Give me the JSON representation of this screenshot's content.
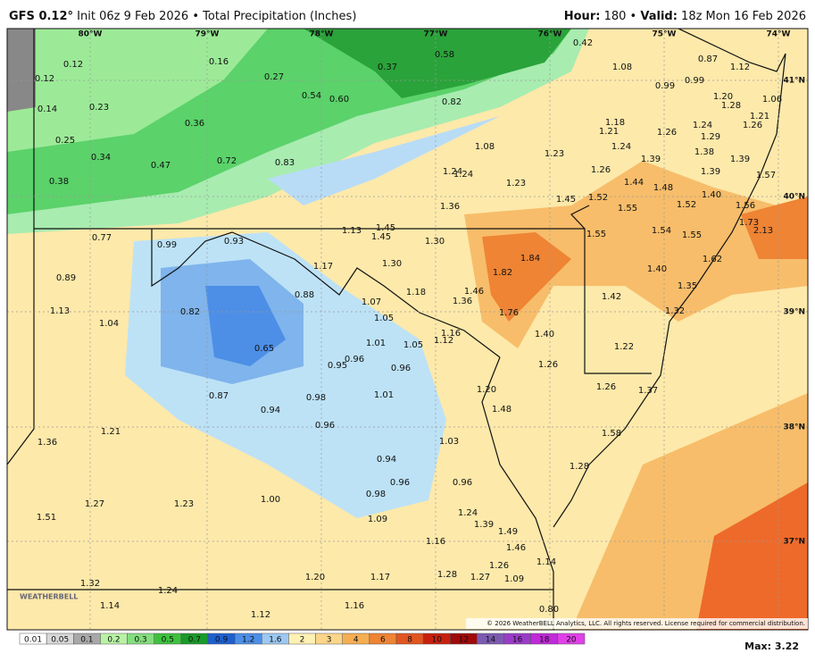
{
  "header": {
    "model": "GFS 0.12°",
    "title": "Init 06z 9 Feb 2026 • Total Precipitation (Inches)",
    "hour_label": "Hour:",
    "hour_value": "180",
    "separator": "•",
    "valid_label": "Valid:",
    "valid_value": "18z Mon 16 Feb 2026"
  },
  "map": {
    "longitudes": [
      "80°W",
      "79°W",
      "78°W",
      "77°W",
      "76°W",
      "75°W",
      "74°W"
    ],
    "latitudes": [
      "41°N",
      "40°N",
      "39°N",
      "38°N",
      "37°N"
    ],
    "values": [
      "0.12",
      "0.12",
      "0.16",
      "0.27",
      "0.37",
      "0.58",
      "0.42",
      "1.08",
      "0.87",
      "1.12",
      "0.14",
      "0.23",
      "0.54",
      "0.60",
      "0.82",
      "0.99",
      "0.99",
      "1.20",
      "1.28",
      "1.06",
      "0.36",
      "1.18",
      "1.21",
      "1.26",
      "1.24",
      "1.21",
      "1.26",
      "0.25",
      "0.34",
      "0.47",
      "0.72",
      "0.83",
      "1.08",
      "1.23",
      "1.24",
      "1.29",
      "1.38",
      "1.39",
      "1.39",
      "0.38",
      "1.24",
      "1.24",
      "1.23",
      "1.26",
      "1.44",
      "1.39",
      "1.57",
      "1.36",
      "1.45",
      "1.52",
      "1.48",
      "1.55",
      "1.52",
      "1.40",
      "1.56",
      "0.77",
      "0.99",
      "0.93",
      "1.13",
      "1.45",
      "1.45",
      "1.30",
      "1.55",
      "1.54",
      "1.55",
      "1.73",
      "2.13",
      "1.17",
      "1.30",
      "1.84",
      "1.82",
      "1.40",
      "1.62",
      "0.89",
      "0.88",
      "1.18",
      "1.46",
      "1.36",
      "1.42",
      "1.35",
      "1.13",
      "0.82",
      "1.07",
      "1.76",
      "1.32",
      "1.04",
      "1.05",
      "1.16",
      "1.40",
      "1.12",
      "0.65",
      "1.01",
      "1.05",
      "1.22",
      "0.96",
      "0.95",
      "0.96",
      "1.26",
      "0.87",
      "0.98",
      "1.01",
      "1.20",
      "1.26",
      "1.37",
      "0.94",
      "1.48",
      "1.36",
      "1.21",
      "0.96",
      "1.03",
      "1.58",
      "0.94",
      "1.28",
      "0.96",
      "0.96",
      "0.98",
      "1.51",
      "1.27",
      "1.23",
      "1.00",
      "1.09",
      "1.24",
      "1.39",
      "1.49",
      "1.16",
      "1.46",
      "1.28",
      "1.27",
      "1.26",
      "1.14",
      "1.09",
      "1.32",
      "1.20",
      "1.17",
      "1.24",
      "1.14",
      "1.16",
      "1.12",
      "0.80"
    ],
    "logo": "WEATHERBELL",
    "copyright": "© 2026 WeatherBELL Analytics, LLC. All rights reserved. License required for commercial distribution."
  },
  "legend": {
    "labels": [
      "0.01",
      "0.05",
      "0.1",
      "0.2",
      "0.3",
      "0.5",
      "0.7",
      "0.9",
      "1.2",
      "1.6",
      "2",
      "3",
      "4",
      "6",
      "8",
      "10",
      "12",
      "14",
      "16",
      "18",
      "20"
    ],
    "colors": [
      "#ffffff",
      "#d8d8d8",
      "#a8a8a8",
      "#b9f2a6",
      "#84dd7e",
      "#3ec23e",
      "#1a9a2a",
      "#1e5fd0",
      "#4d8fe6",
      "#9cc8f2",
      "#fff0b4",
      "#fbd68a",
      "#f5ae52",
      "#ee8434",
      "#e25520",
      "#c8200e",
      "#a00a0a",
      "#7c5ab0",
      "#9a3cc8",
      "#c02ad8",
      "#e040e8"
    ],
    "max_label": "Max:",
    "max_value": "3.22"
  }
}
